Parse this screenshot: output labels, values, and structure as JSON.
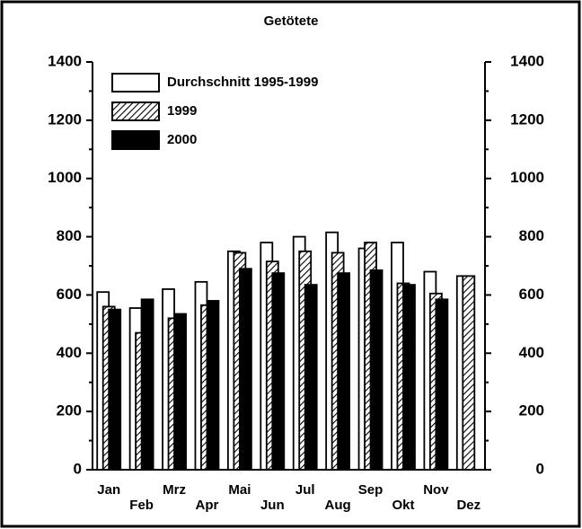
{
  "chart_data": {
    "type": "bar",
    "title": "Getötete",
    "categories": [
      "Jan",
      "Feb",
      "Mrz",
      "Apr",
      "Mai",
      "Jun",
      "Jul",
      "Aug",
      "Sep",
      "Okt",
      "Nov",
      "Dez"
    ],
    "series": [
      {
        "name": "Durchschnitt 1995-1999",
        "color": "#ffffff",
        "pattern": "solid",
        "values": [
          610,
          555,
          620,
          645,
          750,
          780,
          800,
          815,
          760,
          780,
          680,
          665
        ]
      },
      {
        "name": "1999",
        "color": "#000000",
        "pattern": "diagonal",
        "values": [
          560,
          470,
          520,
          565,
          745,
          715,
          750,
          745,
          780,
          640,
          605,
          665
        ]
      },
      {
        "name": "2000",
        "color": "#000000",
        "pattern": "solid",
        "values": [
          550,
          585,
          535,
          580,
          690,
          675,
          635,
          675,
          685,
          635,
          585,
          null
        ]
      }
    ],
    "ylim": [
      0,
      1400
    ],
    "yticks": [
      0,
      200,
      400,
      600,
      800,
      1000,
      1200,
      1400
    ],
    "minor_yticks": [
      100,
      300,
      500,
      700,
      900,
      1100,
      1300
    ],
    "y_axis_both_sides": true,
    "legend": "top-left",
    "grid": false
  }
}
